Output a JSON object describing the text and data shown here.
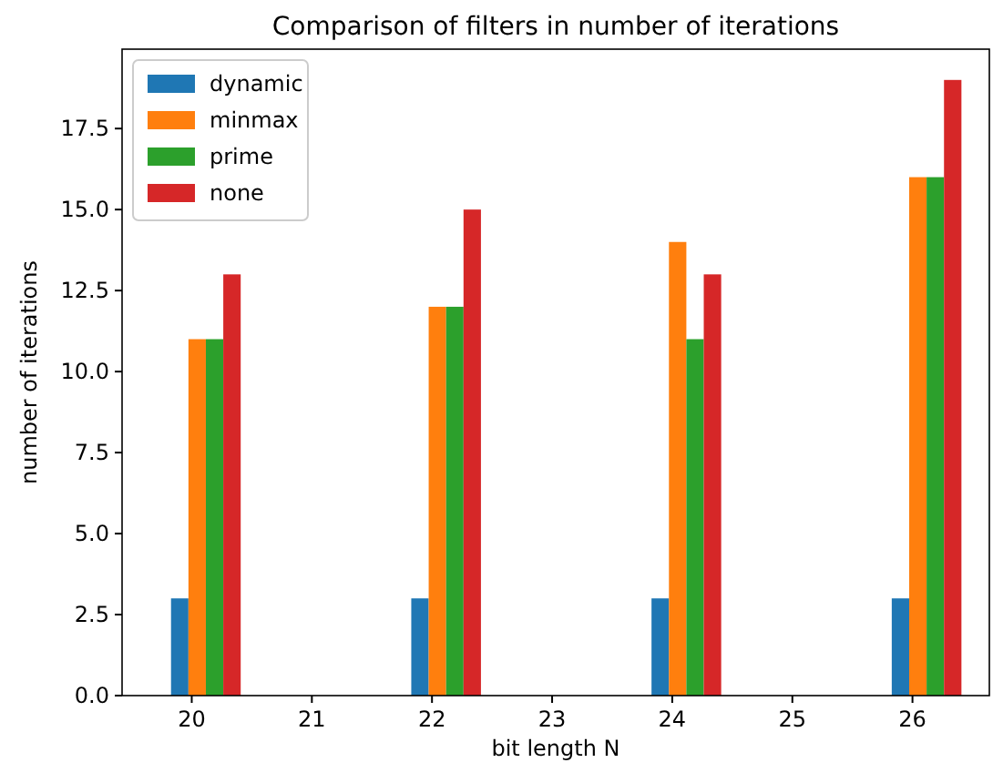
{
  "chart_data": {
    "type": "bar",
    "title": "Comparison of filters in number of iterations",
    "xlabel": "bit length N",
    "ylabel": "number of iterations",
    "x": [
      20,
      22,
      24,
      26
    ],
    "series": [
      {
        "name": "dynamic",
        "color": "#1f77b4",
        "values": [
          3,
          3,
          3,
          3
        ]
      },
      {
        "name": "minmax",
        "color": "#ff7f0e",
        "values": [
          11,
          12,
          14,
          16
        ]
      },
      {
        "name": "prime",
        "color": "#2ca02c",
        "values": [
          11,
          12,
          11,
          16
        ]
      },
      {
        "name": "none",
        "color": "#d62728",
        "values": [
          13,
          15,
          13,
          19
        ]
      }
    ],
    "xlim": [
      19.42,
      26.64
    ],
    "xticks": [
      20,
      21,
      22,
      23,
      24,
      25,
      26
    ],
    "ylim": [
      0,
      19.95
    ],
    "yticks": [
      {
        "value": 0,
        "label": "0.0"
      },
      {
        "value": 2.5,
        "label": "2.5"
      },
      {
        "value": 5,
        "label": "5.0"
      },
      {
        "value": 7.5,
        "label": "7.5"
      },
      {
        "value": 10,
        "label": "10.0"
      },
      {
        "value": 12.5,
        "label": "12.5"
      },
      {
        "value": 15,
        "label": "15.0"
      },
      {
        "value": 17.5,
        "label": "17.5"
      }
    ],
    "grid": false,
    "legend": "top left"
  }
}
